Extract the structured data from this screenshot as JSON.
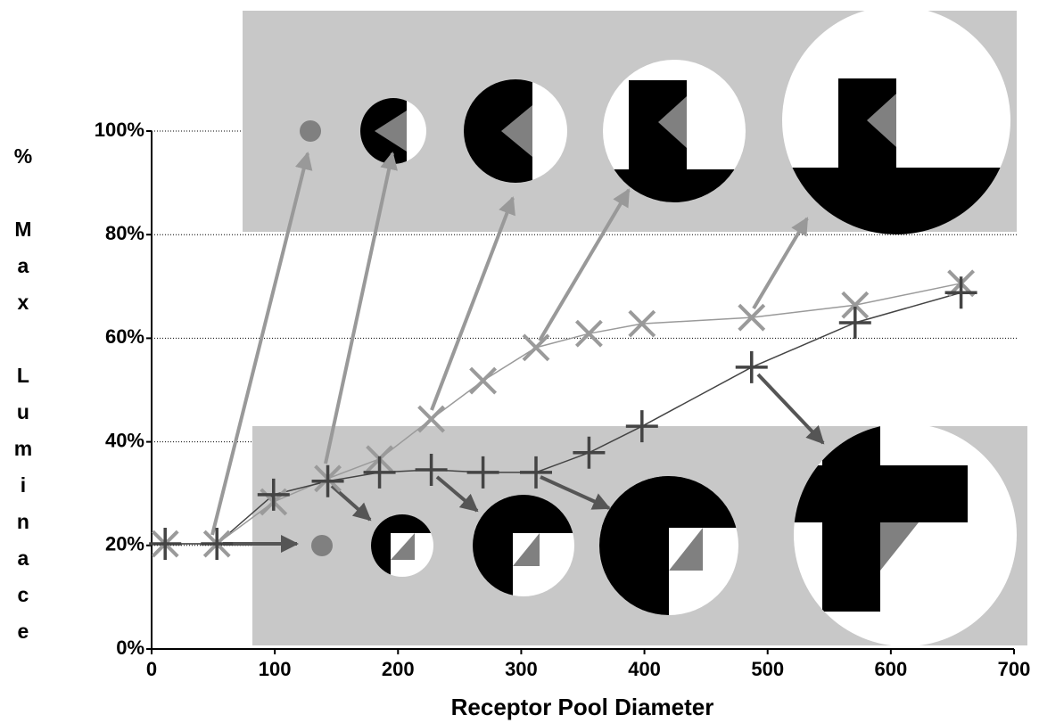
{
  "chart_data": {
    "type": "line",
    "x_label": "Receptor Pool Diameter",
    "y_label": "% Max Luminace",
    "xlim": [
      0,
      700
    ],
    "xticks": [
      0,
      100,
      200,
      300,
      400,
      500,
      600,
      700
    ],
    "ylim": [
      0,
      100
    ],
    "yticks": [
      {
        "value": 0,
        "label": "0%"
      },
      {
        "value": 20,
        "label": "20%"
      },
      {
        "value": 40,
        "label": "40%"
      },
      {
        "value": 60,
        "label": "60%"
      },
      {
        "value": 80,
        "label": "80%"
      },
      {
        "value": 100,
        "label": "100%"
      }
    ],
    "grid": true,
    "series": [
      {
        "marker": "x",
        "color": "#9a9a9a",
        "x": [
          11,
          53,
          99,
          143,
          185,
          227,
          269,
          312,
          355,
          398,
          487,
          571,
          657
        ],
        "values": [
          20.3,
          20.3,
          28.4,
          32.9,
          36.7,
          44.4,
          51.8,
          58.2,
          60.9,
          62.8,
          64,
          66.4,
          70.6
        ]
      },
      {
        "marker": "+",
        "color": "#444444",
        "x": [
          11,
          53,
          99,
          143,
          185,
          227,
          269,
          312,
          355,
          398,
          487,
          571,
          657
        ],
        "values": [
          20.3,
          20.3,
          29.8,
          32.4,
          34.1,
          34.6,
          34.1,
          34.1,
          37.9,
          43,
          54.4,
          63,
          68.8
        ]
      }
    ]
  }
}
